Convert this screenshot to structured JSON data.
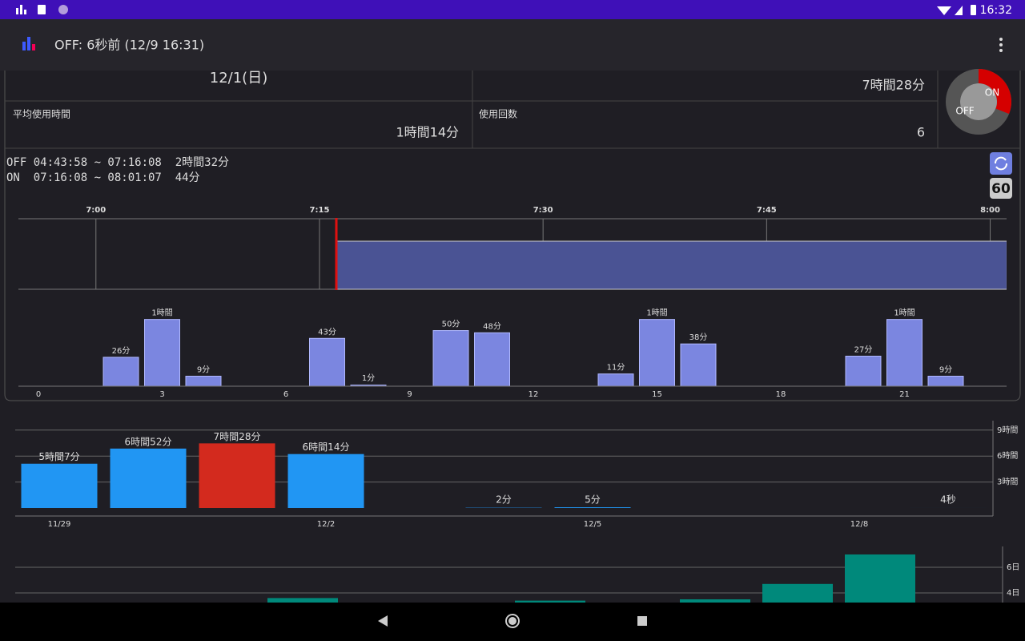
{
  "status_bar": {
    "time": "16:32"
  },
  "app_bar": {
    "title": "OFF: 6秒前 (12/9 16:31)"
  },
  "summary": {
    "date": "12/1(日)",
    "total": "7時間28分",
    "average_label": "平均使用時間",
    "average": "1時間14分",
    "count_label": "使用回数",
    "count": "6"
  },
  "donut": {
    "on_label": "ON",
    "off_label": "OFF",
    "on_percent": 31,
    "on_color": "#d50000",
    "off_color": "#555555"
  },
  "log": [
    "OFF 04:43:58 ~ 07:16:08  2時間32分",
    "ON  07:16:08 ~ 08:01:07  44分"
  ],
  "interval_button": "60",
  "timeline": {
    "type": "range",
    "xlim": [
      414.8,
      481.1
    ],
    "xticks": [
      {
        "value": 420,
        "label": "7:00"
      },
      {
        "value": 435,
        "label": "7:15"
      },
      {
        "value": 450,
        "label": "7:30"
      },
      {
        "value": 465,
        "label": "7:45"
      },
      {
        "value": 480,
        "label": "8:00"
      }
    ],
    "start": 436.13,
    "end": 481.12,
    "color": "#4a5394"
  },
  "hourly": {
    "type": "bar",
    "categories": [
      "0",
      null,
      null,
      "3",
      null,
      null,
      "6",
      null,
      null,
      "9",
      null,
      null,
      "12",
      null,
      null,
      "15",
      null,
      null,
      "18",
      null,
      null,
      "21",
      null,
      null
    ],
    "values": [
      null,
      null,
      26,
      60,
      9,
      null,
      null,
      43,
      1,
      null,
      50,
      48,
      null,
      null,
      11,
      60,
      38,
      null,
      null,
      null,
      27,
      60,
      9,
      null
    ],
    "value_labels": [
      null,
      null,
      "26分",
      "1時間",
      "9分",
      null,
      null,
      "43分",
      "1分",
      null,
      "50分",
      "48分",
      null,
      null,
      "11分",
      "1時間",
      "38分",
      null,
      null,
      null,
      "27分",
      "1時間",
      "9分",
      null
    ],
    "ylim": [
      0,
      72
    ],
    "color": "#7b86e0"
  },
  "daily": {
    "type": "bar",
    "categories": [
      "11/29",
      null,
      null,
      "12/2",
      null,
      null,
      "12/5",
      null,
      null,
      "12/8",
      null
    ],
    "values": [
      307,
      412,
      448,
      374,
      null,
      2,
      5,
      null,
      null,
      null,
      0.0667
    ],
    "value_labels": [
      "5時間7分",
      "6時間52分",
      "7時間28分",
      "6時間14分",
      null,
      "2分",
      "5分",
      null,
      null,
      null,
      "4秒"
    ],
    "ylim": [
      0,
      600
    ],
    "yticks": [
      {
        "value": 180,
        "label": "3時間"
      },
      {
        "value": 360,
        "label": "6時間"
      },
      {
        "value": 540,
        "label": "9時間"
      }
    ],
    "color": "#2196f3",
    "selected": 2,
    "selected_color": "#d32a1e"
  },
  "weekly": {
    "type": "bar",
    "values": [
      null,
      null,
      null,
      3.6,
      null,
      null,
      3.4,
      null,
      3.5,
      4.7,
      7.0
    ],
    "ylim": [
      0,
      7.6
    ],
    "yticks": [
      {
        "value": 4,
        "label": "4日"
      },
      {
        "value": 6,
        "label": "6日"
      }
    ],
    "color": "#00897b"
  }
}
